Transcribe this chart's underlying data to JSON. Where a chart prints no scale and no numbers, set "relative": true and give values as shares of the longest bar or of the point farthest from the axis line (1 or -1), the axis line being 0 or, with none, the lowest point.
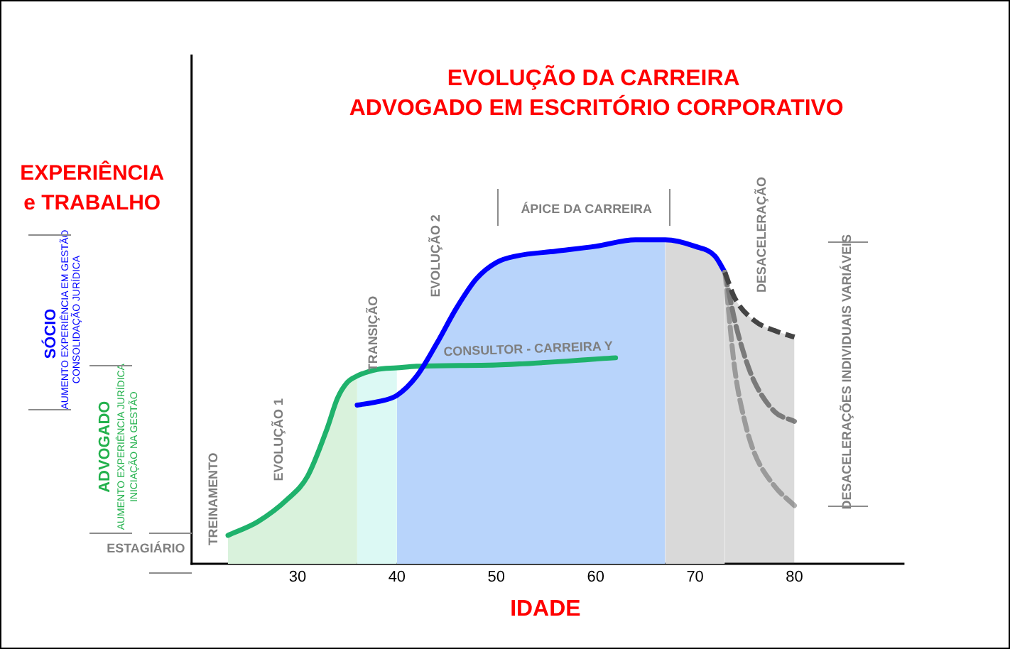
{
  "chart_data": {
    "type": "line",
    "title": "EVOLUÇÃO DA CARREIRA",
    "subtitle": "ADVOGADO EM ESCRITÓRIO CORPORATIVO",
    "xlabel": "IDADE",
    "ylabel": "EXPERIÊNCIA e TRABALHO",
    "relative": true,
    "xlim": [
      19.3,
      91
    ],
    "xticks": [
      30,
      40,
      50,
      60,
      70,
      80
    ],
    "grid": false,
    "legend": false,
    "marker": "none",
    "annotations": [
      "SÓCIO",
      "AUMENTO EXPERIÊNCIA EM GESTÃO",
      "CONSOLIDAÇÃO JURÍDICA",
      "ADVOGADO",
      "AUMENTO EXPERIÊNCIA JURÍDICA",
      "INICIAÇÃO NA GESTÃO",
      "ESTAGIÁRIO",
      "TREINAMENTO",
      "EVOLUÇÃO 1",
      "TRANSIÇÃO",
      "EVOLUÇÃO 2",
      "ÁPICE DA CARREIRA",
      "DESACELERAÇÃO",
      "DESACELERAÇÕES INDIVIDUAIS VARIÁVEIS"
    ],
    "series": [
      {
        "type": "area",
        "color": "#d9f2dc",
        "x": [
          23,
          26,
          29,
          31,
          33,
          34,
          35,
          36
        ],
        "values": [
          0.088,
          0.13,
          0.2,
          0.27,
          0.42,
          0.51,
          0.56,
          0.58
        ]
      },
      {
        "type": "area",
        "color": "#dcf9f4",
        "x": [
          36,
          38,
          40
        ],
        "values": [
          0.58,
          0.6,
          0.605
        ]
      },
      {
        "type": "area",
        "color": "#b8d4fb",
        "x": [
          40,
          42,
          44,
          46,
          48,
          50,
          52,
          56,
          60,
          64,
          67
        ],
        "values": [
          0.52,
          0.58,
          0.68,
          0.79,
          0.88,
          0.93,
          0.95,
          0.965,
          0.98,
          1.0,
          1.0
        ]
      },
      {
        "type": "area",
        "color": "#d9d9d9",
        "x": [
          67,
          70,
          72,
          73
        ],
        "values": [
          1.0,
          0.98,
          0.95,
          0.9
        ]
      },
      {
        "type": "line",
        "name": "CONSULTOR - CARREIRA Y",
        "color": "#1fb26c",
        "x": [
          23,
          26,
          29,
          31,
          33,
          34,
          35,
          36,
          38,
          40,
          42,
          50,
          62
        ],
        "values": [
          0.088,
          0.13,
          0.2,
          0.27,
          0.42,
          0.51,
          0.56,
          0.58,
          0.6,
          0.605,
          0.61,
          0.614,
          0.636
        ]
      },
      {
        "type": "line",
        "color": "#0000ff",
        "x": [
          36,
          38,
          40,
          42,
          44,
          46,
          48,
          50,
          52,
          56,
          60,
          64,
          67,
          70,
          72,
          73
        ],
        "values": [
          0.49,
          0.5,
          0.52,
          0.58,
          0.68,
          0.79,
          0.88,
          0.93,
          0.95,
          0.965,
          0.98,
          1.0,
          1.0,
          0.98,
          0.95,
          0.9
        ]
      },
      {
        "type": "area",
        "line_style": "dashed",
        "color": "#444444",
        "x": [
          73,
          74,
          76,
          78,
          80
        ],
        "values": [
          0.9,
          0.82,
          0.75,
          0.72,
          0.7
        ]
      },
      {
        "type": "line",
        "line_style": "dashed",
        "color": "#888888",
        "x": [
          73,
          74,
          75,
          76,
          78,
          80
        ],
        "values": [
          0.9,
          0.75,
          0.64,
          0.56,
          0.47,
          0.44
        ]
      },
      {
        "type": "line",
        "line_style": "dashed",
        "color": "#b0b0b0",
        "x": [
          73,
          74,
          75,
          76,
          78,
          80
        ],
        "values": [
          0.9,
          0.6,
          0.44,
          0.34,
          0.24,
          0.18
        ]
      }
    ]
  }
}
